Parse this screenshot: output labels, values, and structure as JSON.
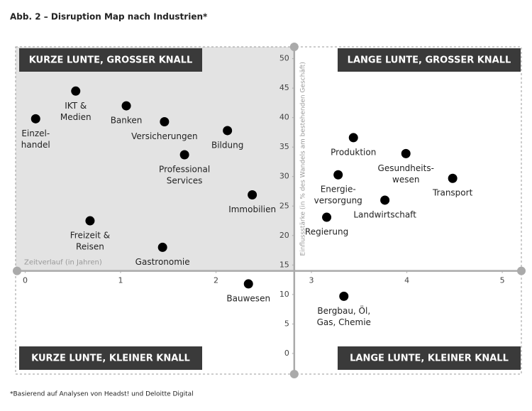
{
  "chart_data": {
    "type": "scatter",
    "title": "Abb. 2 – Disruption Map nach Industrien*",
    "footnote": "*Basierend auf Analysen von Headst! und Deloitte Digital",
    "x_label": "Zeitverlauf (in Jahren)",
    "y_label": "Einflussstärke (in % des Wandels am bestehenden Geschäft)",
    "quadrants": [
      "KURZE LUNTE, GROSSER KNALL",
      "LANGE LUNTE, GROSSER KNALL",
      "KURZE LUNTE, KLEINER KNALL",
      "LANGE LUNTE, KLEINER KNALL"
    ],
    "xlim": [
      -0.1,
      5.2
    ],
    "ylim": [
      -3.5,
      52
    ],
    "xticks": [
      0,
      1,
      2,
      3,
      4,
      5
    ],
    "yticks": [
      0,
      5,
      10,
      15,
      20,
      25,
      30,
      35,
      40,
      45,
      50
    ],
    "x_axis_crosses_y": 14,
    "y_axis_crosses_x": 2.82,
    "x": [
      0.11,
      0.53,
      1.06,
      1.46,
      2.12,
      1.67,
      2.38,
      0.68,
      1.44,
      2.34,
      3.44,
      3.99,
      4.48,
      3.28,
      3.77,
      3.16,
      3.34
    ],
    "series": [
      {
        "color": "#000000",
        "values": [
          39.8,
          44.5,
          42.0,
          39.3,
          37.8,
          33.7,
          26.9,
          22.5,
          18.0,
          11.8,
          36.6,
          33.9,
          29.7,
          30.3,
          26.0,
          23.1,
          9.7
        ]
      }
    ],
    "point_labels": [
      [
        "Einzel-",
        "handel"
      ],
      [
        "IKT &",
        "Medien"
      ],
      [
        "Banken"
      ],
      [
        "Versicherungen"
      ],
      [
        "Bildung"
      ],
      [
        "Professional",
        "Services"
      ],
      [
        "Immobilien"
      ],
      [
        "Freizeit &",
        "Reisen"
      ],
      [
        "Gastronomie"
      ],
      [
        "Bauwesen"
      ],
      [
        "Produktion"
      ],
      [
        "Gesundheits-",
        "wesen"
      ],
      [
        "Transport"
      ],
      [
        "Energie-",
        "versorgung"
      ],
      [
        "Landwirtschaft"
      ],
      [
        "Regierung"
      ],
      [
        "Bergbau, Öl,",
        "Gas, Chemie"
      ]
    ]
  }
}
